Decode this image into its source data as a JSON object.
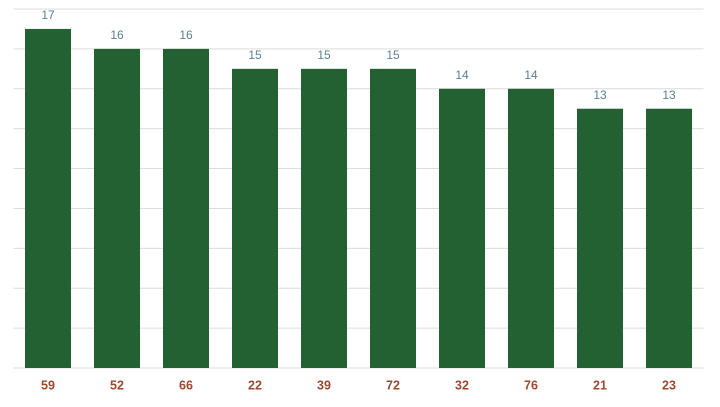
{
  "chart_data": {
    "type": "bar",
    "categories": [
      "59",
      "52",
      "66",
      "22",
      "39",
      "72",
      "32",
      "76",
      "21",
      "23"
    ],
    "values": [
      17,
      16,
      16,
      15,
      15,
      15,
      14,
      14,
      13,
      13
    ],
    "color": "#236133",
    "ylim": [
      0,
      18
    ],
    "yticks": [
      0,
      2,
      4,
      6,
      8,
      10,
      12,
      14,
      16,
      18
    ],
    "grid": true,
    "show_ytick_labels": false,
    "show_value_labels": true
  }
}
